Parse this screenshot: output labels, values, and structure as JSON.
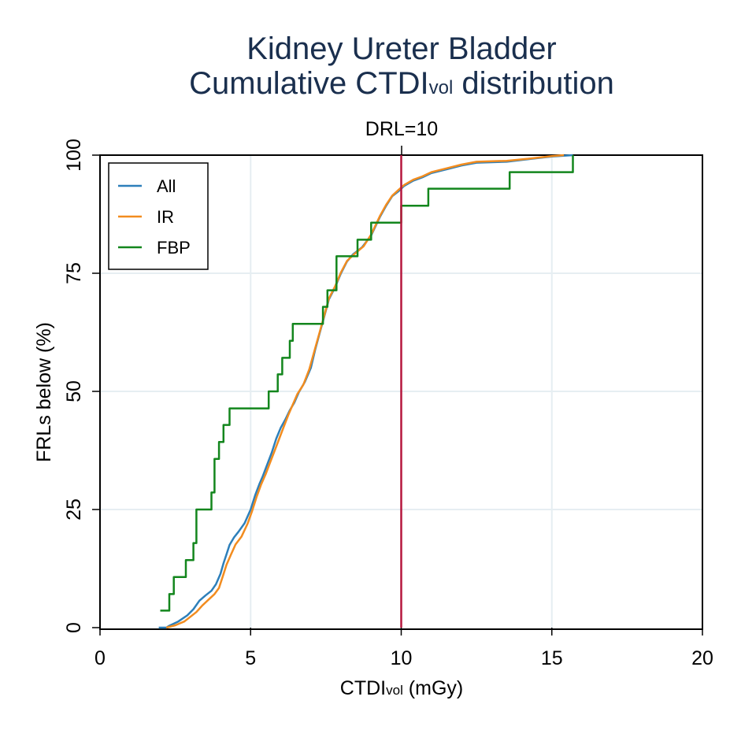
{
  "chart_data": {
    "type": "line",
    "title": {
      "line1": "Kidney Ureter Bladder",
      "line2_prefix": "Cumulative CTDI",
      "line2_sub": "vol",
      "line2_suffix": " distribution"
    },
    "xlabel": {
      "prefix": "CTDI",
      "sub": "vol",
      "suffix": " (mGy)"
    },
    "ylabel": "FRLs below (%)",
    "xlim": [
      0,
      20
    ],
    "ylim": [
      0,
      100
    ],
    "x_ticks": [
      0,
      5,
      10,
      15,
      20
    ],
    "y_ticks": [
      0,
      25,
      50,
      75,
      100
    ],
    "grid": true,
    "reference_line": {
      "x": 10,
      "label": "DRL=10",
      "color": "#b5173d"
    },
    "legend_position": "top-left",
    "series": [
      {
        "name": "All",
        "color": "#2d7fba",
        "points": [
          [
            1.95,
            0
          ],
          [
            2.2,
            0
          ],
          [
            2.3,
            0.4
          ],
          [
            2.6,
            1.3
          ],
          [
            2.9,
            2.6
          ],
          [
            3.1,
            3.9
          ],
          [
            3.3,
            5.7
          ],
          [
            3.5,
            6.8
          ],
          [
            3.7,
            7.8
          ],
          [
            3.85,
            9.2
          ],
          [
            4.0,
            11.4
          ],
          [
            4.1,
            13.6
          ],
          [
            4.2,
            15.5
          ],
          [
            4.3,
            17.5
          ],
          [
            4.45,
            19.1
          ],
          [
            4.6,
            20.3
          ],
          [
            4.8,
            22.1
          ],
          [
            5.0,
            25
          ],
          [
            5.15,
            28
          ],
          [
            5.3,
            30.5
          ],
          [
            5.4,
            32
          ],
          [
            5.55,
            34.5
          ],
          [
            5.7,
            37
          ],
          [
            5.85,
            40
          ],
          [
            6.0,
            42.3
          ],
          [
            6.15,
            44
          ],
          [
            6.3,
            46
          ],
          [
            6.45,
            47.6
          ],
          [
            6.6,
            49.8
          ],
          [
            6.8,
            52
          ],
          [
            7.0,
            55
          ],
          [
            7.15,
            59
          ],
          [
            7.3,
            62.5
          ],
          [
            7.45,
            66
          ],
          [
            7.6,
            69.5
          ],
          [
            7.8,
            72
          ],
          [
            8.0,
            75
          ],
          [
            8.2,
            77.5
          ],
          [
            8.4,
            79
          ],
          [
            8.7,
            80.5
          ],
          [
            9.0,
            83
          ],
          [
            9.3,
            87
          ],
          [
            9.5,
            89.3
          ],
          [
            9.7,
            91.3
          ],
          [
            9.9,
            92.3
          ],
          [
            10.1,
            93.5
          ],
          [
            10.4,
            94.6
          ],
          [
            10.7,
            95.3
          ],
          [
            11.0,
            96.2
          ],
          [
            11.5,
            97
          ],
          [
            12.0,
            97.8
          ],
          [
            12.5,
            98.4
          ],
          [
            13.5,
            98.6
          ],
          [
            14.3,
            99.2
          ],
          [
            15.0,
            99.7
          ],
          [
            15.7,
            100
          ]
        ]
      },
      {
        "name": "IR",
        "color": "#f28c1f",
        "points": [
          [
            2.2,
            0
          ],
          [
            2.5,
            0.5
          ],
          [
            2.8,
            1.3
          ],
          [
            3.0,
            2.3
          ],
          [
            3.2,
            3.3
          ],
          [
            3.4,
            4.7
          ],
          [
            3.6,
            5.9
          ],
          [
            3.8,
            7.1
          ],
          [
            3.95,
            8.4
          ],
          [
            4.1,
            11.3
          ],
          [
            4.2,
            13.3
          ],
          [
            4.35,
            15.5
          ],
          [
            4.5,
            17.6
          ],
          [
            4.7,
            19.3
          ],
          [
            4.9,
            22
          ],
          [
            5.05,
            24.7
          ],
          [
            5.2,
            27.7
          ],
          [
            5.35,
            30.3
          ],
          [
            5.5,
            32.5
          ],
          [
            5.65,
            35
          ],
          [
            5.8,
            37.5
          ],
          [
            5.95,
            40
          ],
          [
            6.1,
            42.5
          ],
          [
            6.25,
            45
          ],
          [
            6.4,
            47.2
          ],
          [
            6.55,
            49.4
          ],
          [
            6.75,
            51.4
          ],
          [
            6.95,
            54.7
          ],
          [
            7.15,
            59.3
          ],
          [
            7.3,
            62.7
          ],
          [
            7.45,
            66.2
          ],
          [
            7.6,
            69.7
          ],
          [
            7.8,
            72.2
          ],
          [
            8.0,
            75.2
          ],
          [
            8.2,
            77.6
          ],
          [
            8.45,
            79.1
          ],
          [
            8.75,
            80.7
          ],
          [
            9.0,
            83.2
          ],
          [
            9.3,
            87.2
          ],
          [
            9.5,
            89.5
          ],
          [
            9.7,
            91.4
          ],
          [
            9.9,
            92.6
          ],
          [
            10.1,
            93.7
          ],
          [
            10.4,
            94.8
          ],
          [
            10.7,
            95.5
          ],
          [
            11.0,
            96.4
          ],
          [
            11.5,
            97.2
          ],
          [
            12.0,
            98
          ],
          [
            12.5,
            98.6
          ],
          [
            13.5,
            98.8
          ],
          [
            14.3,
            99.3
          ],
          [
            15.0,
            99.8
          ],
          [
            15.4,
            100
          ]
        ]
      },
      {
        "name": "FBP",
        "color": "#13861d",
        "step": true,
        "points": [
          [
            2.0,
            3.6
          ],
          [
            2.3,
            3.6
          ],
          [
            2.3,
            7.1
          ],
          [
            2.45,
            7.1
          ],
          [
            2.45,
            10.7
          ],
          [
            2.85,
            10.7
          ],
          [
            2.85,
            14.3
          ],
          [
            3.1,
            14.3
          ],
          [
            3.1,
            17.9
          ],
          [
            3.2,
            17.9
          ],
          [
            3.2,
            25
          ],
          [
            3.7,
            25
          ],
          [
            3.7,
            28.6
          ],
          [
            3.8,
            28.6
          ],
          [
            3.8,
            35.7
          ],
          [
            3.95,
            35.7
          ],
          [
            3.95,
            39.3
          ],
          [
            4.1,
            39.3
          ],
          [
            4.1,
            42.9
          ],
          [
            4.3,
            42.9
          ],
          [
            4.3,
            46.4
          ],
          [
            5.6,
            46.4
          ],
          [
            5.6,
            50
          ],
          [
            5.9,
            50
          ],
          [
            5.9,
            53.6
          ],
          [
            6.05,
            53.6
          ],
          [
            6.05,
            57.1
          ],
          [
            6.3,
            57.1
          ],
          [
            6.3,
            60.7
          ],
          [
            6.4,
            60.7
          ],
          [
            6.4,
            64.3
          ],
          [
            7.4,
            64.3
          ],
          [
            7.4,
            67.9
          ],
          [
            7.55,
            67.9
          ],
          [
            7.55,
            71.4
          ],
          [
            7.85,
            71.4
          ],
          [
            7.85,
            78.6
          ],
          [
            8.55,
            78.6
          ],
          [
            8.55,
            82.1
          ],
          [
            9.0,
            82.1
          ],
          [
            9.0,
            85.7
          ],
          [
            10.0,
            85.7
          ],
          [
            10.0,
            89.3
          ],
          [
            10.9,
            89.3
          ],
          [
            10.9,
            92.9
          ],
          [
            13.6,
            92.9
          ],
          [
            13.6,
            96.4
          ],
          [
            15.7,
            96.4
          ],
          [
            15.7,
            100
          ]
        ]
      }
    ]
  }
}
